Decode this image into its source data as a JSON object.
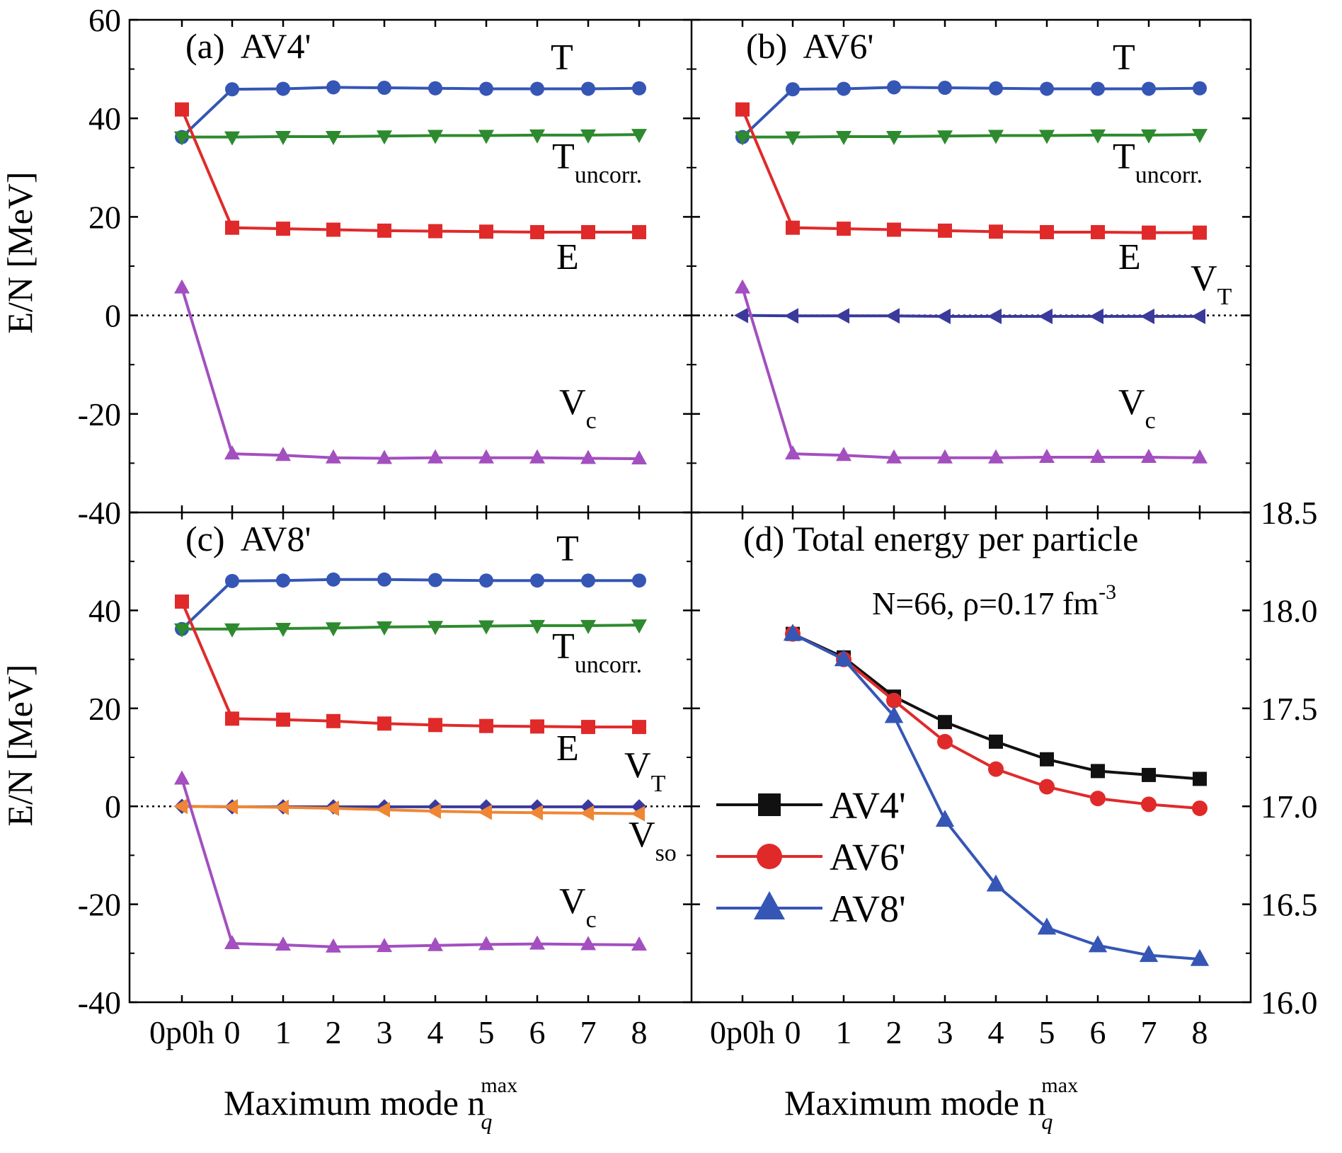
{
  "colors": {
    "T": "#3556b5",
    "T_uncorr": "#2e8a2e",
    "E": "#e02a2a",
    "V_c": "#a34fbf",
    "V_T": "#3a3a9c",
    "V_so": "#ef8634",
    "AV4p": "#111111",
    "AV6p": "#e02a2a",
    "AV8p": "#3556b5"
  },
  "shared": {
    "x_tick_labels": [
      "0p0h",
      "0",
      "1",
      "2",
      "3",
      "4",
      "5",
      "6",
      "7",
      "8"
    ],
    "xlabel_main": "Maximum mode n",
    "xlabel_sub": "q",
    "xlabel_sup": "max",
    "ylabel": "E/N [MeV]"
  },
  "chart_data": [
    {
      "type": "line",
      "title": "(a)  AV4'",
      "x": [
        "0p0h",
        "0",
        "1",
        "2",
        "3",
        "4",
        "5",
        "6",
        "7",
        "8"
      ],
      "ylim": [
        -40,
        60
      ],
      "yticks": [
        "60",
        "40",
        "20",
        "0",
        "-20",
        "-40"
      ],
      "series": [
        {
          "key": "T",
          "label_main": "T",
          "label_sub": "",
          "marker": "circle",
          "values": [
            36.2,
            45.9,
            46.0,
            46.3,
            46.2,
            46.1,
            46.0,
            46.0,
            46.0,
            46.1
          ]
        },
        {
          "key": "T_uncorr",
          "label_main": "T",
          "label_sub": "uncorr.",
          "marker": "triangle-down",
          "values": [
            36.2,
            36.2,
            36.3,
            36.3,
            36.4,
            36.5,
            36.5,
            36.6,
            36.6,
            36.7
          ]
        },
        {
          "key": "E",
          "label_main": "E",
          "label_sub": "",
          "marker": "square",
          "values": [
            41.8,
            17.8,
            17.6,
            17.4,
            17.2,
            17.1,
            17.0,
            16.9,
            16.9,
            16.9
          ]
        },
        {
          "key": "V_c",
          "label_main": "V",
          "label_sub": "c",
          "marker": "triangle-up",
          "values": [
            5.6,
            -28.1,
            -28.4,
            -28.9,
            -29.0,
            -28.9,
            -28.9,
            -28.9,
            -29.0,
            -29.1
          ]
        }
      ]
    },
    {
      "type": "line",
      "title": "(b)  AV6'",
      "x": [
        "0p0h",
        "0",
        "1",
        "2",
        "3",
        "4",
        "5",
        "6",
        "7",
        "8"
      ],
      "ylim": [
        -40,
        60
      ],
      "series": [
        {
          "key": "T",
          "label_main": "T",
          "label_sub": "",
          "marker": "circle",
          "values": [
            36.2,
            45.9,
            46.0,
            46.3,
            46.2,
            46.1,
            46.0,
            46.0,
            46.0,
            46.1
          ]
        },
        {
          "key": "T_uncorr",
          "label_main": "T",
          "label_sub": "uncorr.",
          "marker": "triangle-down",
          "values": [
            36.2,
            36.2,
            36.3,
            36.3,
            36.4,
            36.5,
            36.5,
            36.6,
            36.6,
            36.7
          ]
        },
        {
          "key": "E",
          "label_main": "E",
          "label_sub": "",
          "marker": "square",
          "values": [
            41.8,
            17.8,
            17.6,
            17.4,
            17.2,
            17.0,
            16.9,
            16.9,
            16.8,
            16.8
          ]
        },
        {
          "key": "V_T",
          "label_main": "V",
          "label_sub": "T",
          "marker": "triangle-left",
          "values": [
            0.0,
            -0.1,
            -0.1,
            -0.1,
            -0.2,
            -0.2,
            -0.2,
            -0.2,
            -0.2,
            -0.2
          ]
        },
        {
          "key": "V_c",
          "label_main": "V",
          "label_sub": "c",
          "marker": "triangle-up",
          "values": [
            5.6,
            -28.1,
            -28.4,
            -28.9,
            -28.9,
            -28.9,
            -28.8,
            -28.8,
            -28.8,
            -28.9
          ]
        }
      ]
    },
    {
      "type": "line",
      "title": "(c)  AV8'",
      "x": [
        "0p0h",
        "0",
        "1",
        "2",
        "3",
        "4",
        "5",
        "6",
        "7",
        "8"
      ],
      "ylim": [
        -40,
        60
      ],
      "yticks": [
        "40",
        "20",
        "0",
        "-20",
        "-40"
      ],
      "series": [
        {
          "key": "T",
          "label_main": "T",
          "label_sub": "",
          "marker": "circle",
          "values": [
            36.2,
            46.0,
            46.1,
            46.3,
            46.3,
            46.2,
            46.1,
            46.1,
            46.1,
            46.1
          ]
        },
        {
          "key": "T_uncorr",
          "label_main": "T",
          "label_sub": "uncorr.",
          "marker": "triangle-down",
          "values": [
            36.2,
            36.2,
            36.3,
            36.4,
            36.6,
            36.7,
            36.8,
            36.9,
            36.9,
            37.0
          ]
        },
        {
          "key": "E",
          "label_main": "E",
          "label_sub": "",
          "marker": "square",
          "values": [
            41.8,
            17.9,
            17.7,
            17.4,
            16.9,
            16.6,
            16.4,
            16.3,
            16.2,
            16.2
          ]
        },
        {
          "key": "V_T",
          "label_main": "V",
          "label_sub": "T",
          "marker": "diamond",
          "values": [
            0.0,
            -0.1,
            -0.1,
            -0.1,
            -0.1,
            -0.1,
            -0.1,
            -0.1,
            -0.1,
            -0.1
          ]
        },
        {
          "key": "V_so",
          "label_main": "V",
          "label_sub": "so",
          "marker": "triangle-left",
          "values": [
            0.0,
            -0.1,
            -0.2,
            -0.4,
            -0.7,
            -1.0,
            -1.2,
            -1.3,
            -1.4,
            -1.5
          ]
        },
        {
          "key": "V_c",
          "label_main": "V",
          "label_sub": "c",
          "marker": "triangle-up",
          "values": [
            5.6,
            -28.0,
            -28.3,
            -28.7,
            -28.6,
            -28.4,
            -28.2,
            -28.1,
            -28.2,
            -28.3
          ]
        }
      ]
    },
    {
      "type": "line",
      "title": "(d) Total energy per particle",
      "annotation": {
        "main": "N=66, ρ=0.17 fm",
        "sup": "-3"
      },
      "x": [
        "0p0h",
        "0",
        "1",
        "2",
        "3",
        "4",
        "5",
        "6",
        "7",
        "8"
      ],
      "ylim": [
        16.0,
        18.5
      ],
      "yticks": [
        "18.5",
        "18.0",
        "17.5",
        "17.0",
        "16.5",
        "16.0"
      ],
      "series": [
        {
          "key": "AV4p",
          "name": "AV4'",
          "marker": "square",
          "values": [
            null,
            17.88,
            17.76,
            17.56,
            17.43,
            17.33,
            17.24,
            17.18,
            17.16,
            17.14
          ]
        },
        {
          "key": "AV6p",
          "name": "AV6'",
          "marker": "circle",
          "values": [
            null,
            17.88,
            17.75,
            17.54,
            17.33,
            17.19,
            17.1,
            17.04,
            17.01,
            16.99
          ]
        },
        {
          "key": "AV8p",
          "name": "AV8'",
          "marker": "triangle-up",
          "values": [
            null,
            17.88,
            17.75,
            17.46,
            16.93,
            16.6,
            16.38,
            16.29,
            16.24,
            16.22
          ]
        }
      ]
    }
  ]
}
